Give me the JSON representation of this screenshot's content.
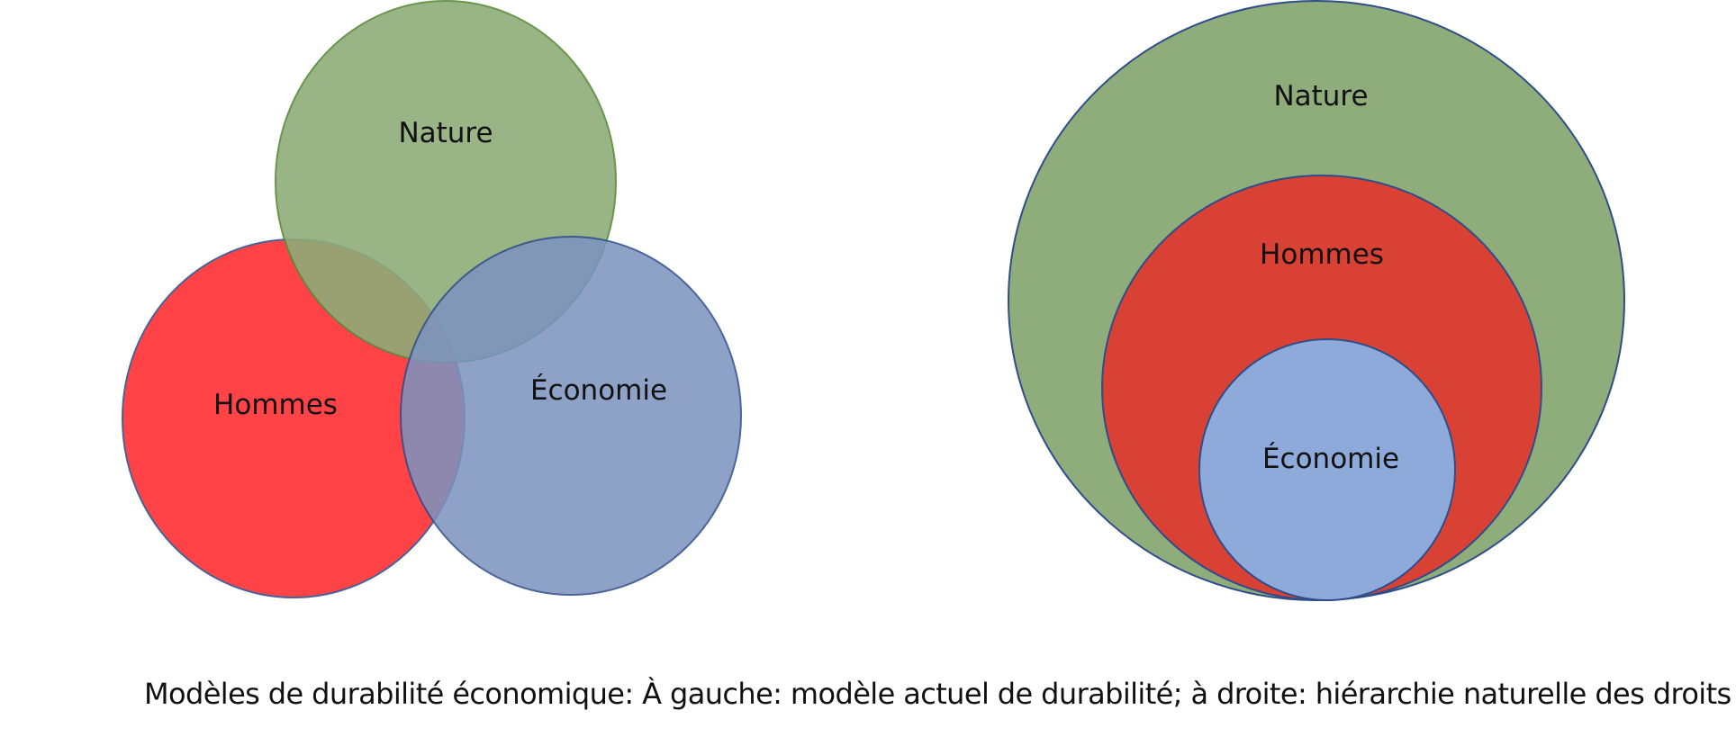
{
  "left_model": {
    "nature": {
      "label": "Nature",
      "fill": "#8eac78",
      "stroke": "#5a8a3a"
    },
    "hommes": {
      "label": "Hommes",
      "fill": "#ff2a2e",
      "stroke": "#2f4d8a"
    },
    "economie": {
      "label": "Économie",
      "fill": "#7c93c0",
      "stroke": "#2f4d8a"
    }
  },
  "right_model": {
    "nature": {
      "label": "Nature",
      "fill": "#8fad7b",
      "stroke": "#2f4d8a"
    },
    "hommes": {
      "label": "Hommes",
      "fill": "#d84134",
      "stroke": "#2f4d8a"
    },
    "economie": {
      "label": "Économie",
      "fill": "#8eaadb",
      "stroke": "#2f4d8a"
    }
  },
  "caption": "Modèles de durabilité économique: À gauche: modèle actuel de durabilité; à droite: hiérarchie naturelle des droits"
}
